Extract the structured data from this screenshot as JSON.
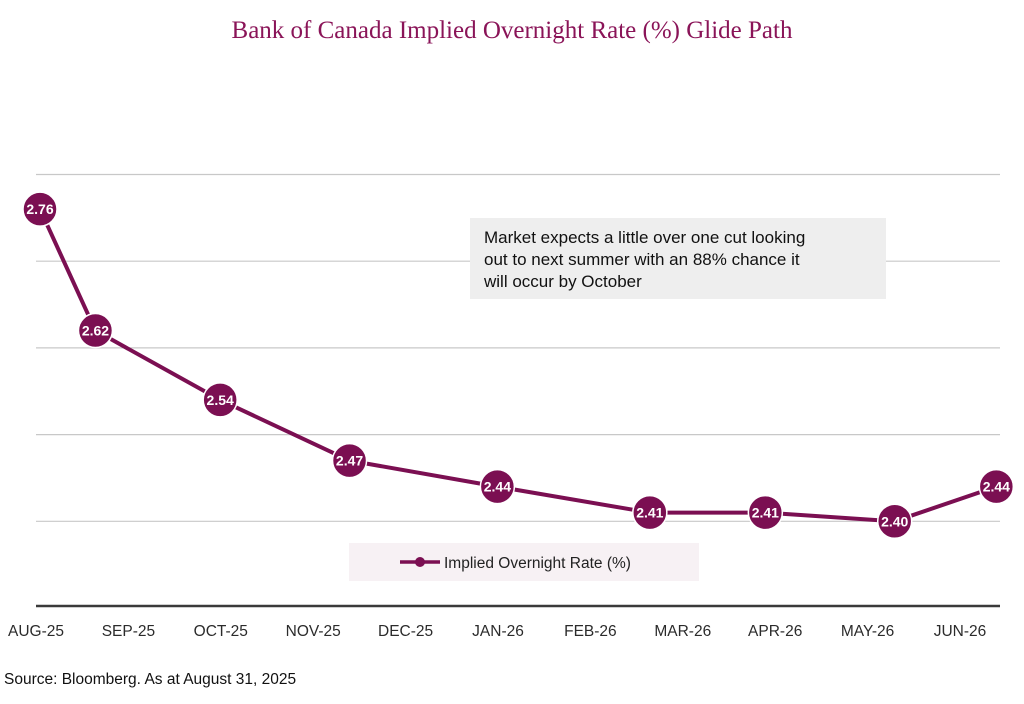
{
  "chart_data": {
    "type": "line",
    "title": "Bank of Canada Implied Overnight Rate (%) Glide Path",
    "categories": [
      "AUG-25",
      "SEP-25",
      "OCT-25",
      "NOV-25",
      "DEC-25",
      "JAN-26",
      "FEB-26",
      "MAR-26",
      "APR-26",
      "MAY-26",
      "JUN-26"
    ],
    "series": [
      {
        "name": "Implied Overnight Rate (%)",
        "color": "#7b0f52",
        "points": [
          {
            "x": 0.0,
            "value": 2.76,
            "label": "2.76"
          },
          {
            "x": 0.6,
            "value": 2.62,
            "label": "2.62"
          },
          {
            "x": 1.95,
            "value": 2.54,
            "label": "2.54"
          },
          {
            "x": 3.35,
            "value": 2.47,
            "label": "2.47"
          },
          {
            "x": 4.95,
            "value": 2.44,
            "label": "2.44"
          },
          {
            "x": 6.6,
            "value": 2.41,
            "label": "2.41"
          },
          {
            "x": 7.85,
            "value": 2.41,
            "label": "2.41"
          },
          {
            "x": 9.25,
            "value": 2.4,
            "label": "2.40"
          },
          {
            "x": 10.35,
            "value": 2.44,
            "label": "2.44"
          }
        ]
      }
    ],
    "xlabel": "",
    "ylabel": "",
    "ylim": [
      2.3,
      2.8
    ],
    "grid": true,
    "legend_position": "bottom-center",
    "annotation": {
      "lines": [
        "Market expects a little over one cut looking",
        "out to next summer with an 88% chance it",
        "will occur by October"
      ]
    },
    "source": "Source: Bloomberg. As at August 31, 2025",
    "colors": {
      "title": "#8a1458",
      "line": "#7b0f52",
      "grid": "#c8c8c8",
      "axis": "#3a3a3a",
      "annotation_bg": "#eeeeee",
      "legend_bg": "#f7f1f4"
    }
  }
}
